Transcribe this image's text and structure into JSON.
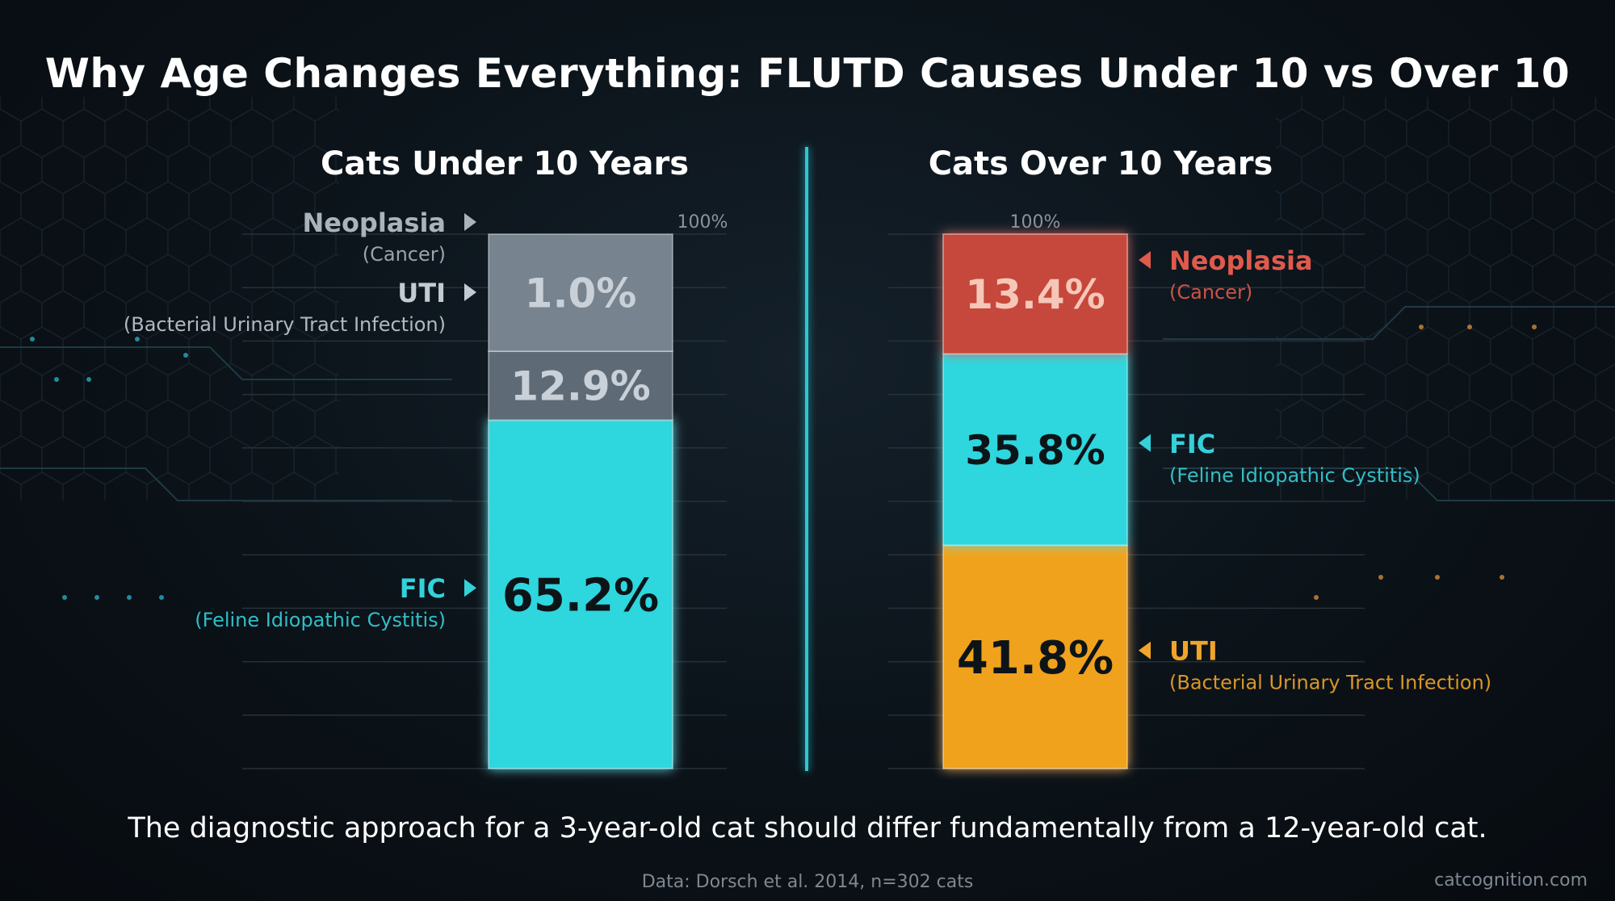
{
  "title": "Why Age Changes Everything: FLUTD Causes Under 10 vs Over 10",
  "takeaway": "The diagnostic approach for a 3-year-old cat should differ fundamentally from a 12-year-old cat.",
  "source": "Data: Dorsch et al. 2014, n=302 cats",
  "site": "catcognition.com",
  "chart_data": [
    {
      "type": "bar",
      "stacked": true,
      "title": "Cats Under 10 Years",
      "top_label": "100%",
      "ylim": [
        0,
        100
      ],
      "segments": [
        {
          "name": "FIC",
          "sub": "(Feline Idiopathic Cystitis)",
          "value": 65.2,
          "label": "65.2%",
          "color": "#2fd6de",
          "name_color": "#34d1da"
        },
        {
          "name": "UTI",
          "sub": "(Bacterial Urinary Tract Infection)",
          "value": 12.9,
          "label": "12.9%",
          "color": "#5e6b77",
          "name_color": "#c3cad2"
        },
        {
          "name": "Neoplasia",
          "sub": "(Cancer)",
          "value": 1.0,
          "label": "1.0%",
          "color": "#77838e",
          "name_color": "#aab2ba"
        }
      ]
    },
    {
      "type": "bar",
      "stacked": true,
      "title": "Cats Over 10 Years",
      "top_label": "100%",
      "ylim": [
        0,
        100
      ],
      "segments": [
        {
          "name": "UTI",
          "sub": "(Bacterial Urinary Tract Infection)",
          "value": 41.8,
          "label": "41.8%",
          "color": "#f0a21e",
          "name_color": "#f0a52a"
        },
        {
          "name": "FIC",
          "sub": "(Feline Idiopathic Cystitis)",
          "value": 35.8,
          "label": "35.8%",
          "color": "#2fd6de",
          "name_color": "#34d1da"
        },
        {
          "name": "Neoplasia",
          "sub": "(Cancer)",
          "value": 13.4,
          "label": "13.4%",
          "color": "#c6463a",
          "name_color": "#e05a4c"
        }
      ]
    }
  ]
}
